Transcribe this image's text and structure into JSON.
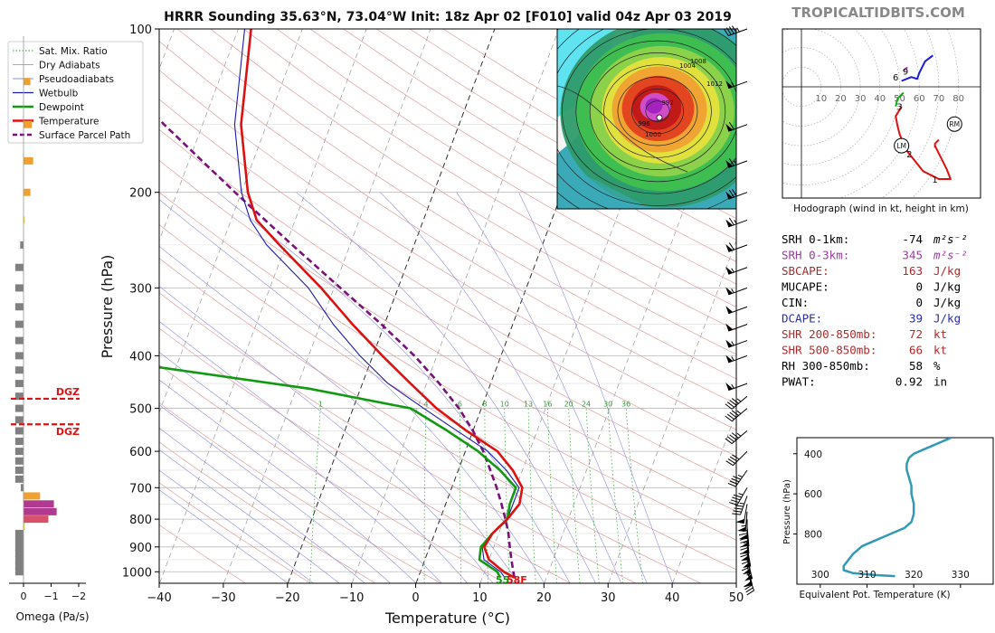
{
  "title": "HRRR Sounding 35.63°N, 73.04°W Init: 18z Apr 02 [F010] valid 04z Apr 03 2019",
  "brand": "TROPICALTIDBITS.COM",
  "colors": {
    "temperature": "#dd1111",
    "dewpoint": "#119911",
    "wetbulb": "#1a1aaa",
    "parcel": "#7a117a",
    "dgz": "#dd1111",
    "omega_grey": "#808080",
    "omega_orange": "#f0a030",
    "omega_yellow": "#f0e040",
    "omega_magenta": "#b03a90",
    "omega_pink": "#d8506a",
    "hodo_red": "#dd1111",
    "hodo_blue": "#1a1ae0",
    "hodo_green": "#11aa11",
    "hodo_magenta": "#c040c0",
    "theta_e": "#3399b5"
  },
  "legend": {
    "items": [
      {
        "label": "Sat. Mix. Ratio",
        "style": "dotted-green"
      },
      {
        "label": "Dry Adiabats",
        "style": "thin-grey"
      },
      {
        "label": "Pseudoadiabats",
        "style": "thin-blue"
      },
      {
        "label": "Wetbulb",
        "style": "blue"
      },
      {
        "label": "Dewpoint",
        "style": "green-thick"
      },
      {
        "label": "Temperature",
        "style": "red-thick"
      },
      {
        "label": "Surface Parcel Path",
        "style": "purple-dashed"
      }
    ]
  },
  "chart_data": [
    {
      "type": "line",
      "name": "skew-t",
      "xlabel": "Temperature (°C)",
      "ylabel": "Pressure (hPa)",
      "xlim": [
        -40,
        50
      ],
      "ylim": [
        1050,
        100
      ],
      "x_ticks": [
        "−40",
        "−30",
        "−20",
        "−10",
        "0",
        "10",
        "20",
        "30",
        "40",
        "50"
      ],
      "x_tick_values": [
        -40,
        -30,
        -20,
        -10,
        0,
        10,
        20,
        30,
        40,
        50
      ],
      "y_ticks": [
        "100",
        "200",
        "300",
        "400",
        "500",
        "600",
        "700",
        "800",
        "900",
        "1000"
      ],
      "y_tick_values": [
        100,
        200,
        300,
        400,
        500,
        600,
        700,
        800,
        900,
        1000
      ],
      "mixing_ratio_labels": [
        "1",
        "4",
        "6",
        "8",
        "10",
        "13",
        "16",
        "20",
        "24",
        "30",
        "36"
      ],
      "mixing_ratio_values": [
        1,
        4,
        6,
        8,
        10,
        13,
        16,
        20,
        24,
        30,
        36
      ],
      "series": [
        {
          "name": "Temperature",
          "p": [
            1025,
            1000,
            950,
            900,
            850,
            800,
            750,
            700,
            650,
            600,
            550,
            500,
            450,
            400,
            350,
            300,
            250,
            225,
            200,
            150,
            100
          ],
          "t": [
            15,
            13,
            10,
            8.5,
            9,
            10.5,
            11.5,
            11,
            8.5,
            5,
            -1,
            -7,
            -12.5,
            -18.5,
            -25,
            -32,
            -41,
            -46,
            -49,
            -54,
            -58
          ]
        },
        {
          "name": "Dewpoint",
          "p": [
            1025,
            1000,
            950,
            900,
            850,
            800,
            750,
            700,
            650,
            600,
            550,
            500,
            460,
            400,
            360,
            340,
            320,
            290,
            250,
            200,
            180,
            150,
            130,
            120,
            100
          ],
          "t": [
            12.8,
            12,
            8.5,
            8,
            9,
            10.5,
            10,
            10,
            6.5,
            2,
            -4,
            -11,
            -28,
            -66,
            -68,
            -69,
            -70,
            -70,
            -72,
            -74,
            -76,
            -78,
            -80,
            -79,
            -77
          ]
        },
        {
          "name": "Wetbulb",
          "p": [
            1025,
            1000,
            950,
            900,
            850,
            800,
            750,
            700,
            650,
            600,
            550,
            500,
            450,
            400,
            350,
            300,
            250,
            225,
            200,
            150,
            100
          ],
          "t": [
            13.5,
            12.5,
            9.2,
            8.2,
            9,
            10.5,
            10.5,
            10.5,
            7.5,
            3.5,
            -2.5,
            -9,
            -16,
            -22,
            -28,
            -34,
            -43,
            -47,
            -50,
            -55,
            -59
          ]
        },
        {
          "name": "Surface Parcel Path",
          "p": [
            1025,
            1000,
            950,
            900,
            850,
            800,
            750,
            700,
            650,
            600,
            550,
            500,
            450,
            400,
            350,
            300,
            250,
            200,
            150,
            100
          ],
          "t": [
            15,
            14.5,
            13.5,
            12.5,
            11.5,
            10.2,
            8.7,
            7,
            5,
            2.8,
            0,
            -3.5,
            -8,
            -13.5,
            -20.5,
            -29,
            -39,
            -51,
            -66,
            -85
          ]
        }
      ],
      "surface_labels": {
        "dewpoint_f": "55",
        "temperature_f": "58F"
      }
    },
    {
      "type": "bar",
      "name": "omega",
      "xlabel": "Omega (Pa/s)",
      "x_ticks": [
        "0",
        "−1",
        "−2"
      ],
      "x_tick_values": [
        0,
        -1,
        -2
      ],
      "dgz_label": "DGZ",
      "dgz_levels_hpa": [
        480,
        535
      ],
      "p": [
        1000,
        975,
        950,
        925,
        900,
        875,
        850,
        825,
        800,
        775,
        750,
        725,
        700,
        675,
        650,
        625,
        600,
        575,
        550,
        525,
        500,
        475,
        450,
        425,
        400,
        375,
        350,
        325,
        300,
        275,
        250,
        225,
        200,
        175,
        150,
        125
      ],
      "values": [
        0.3,
        0.3,
        0.3,
        0.3,
        0.3,
        0.3,
        0.3,
        -0.05,
        -0.9,
        -1.2,
        -1.1,
        -0.6,
        0.1,
        0.3,
        0.3,
        0.3,
        0.3,
        0.3,
        0.3,
        0.3,
        0.3,
        0.3,
        0.3,
        0.3,
        0.3,
        0.3,
        0.3,
        0.3,
        0.3,
        0.3,
        0.12,
        -0.05,
        -0.25,
        -0.35,
        -0.3,
        -0.25
      ],
      "colors": [
        "grey",
        "grey",
        "grey",
        "grey",
        "grey",
        "grey",
        "grey",
        "yellow",
        "pink",
        "magenta",
        "magenta",
        "orange",
        "grey",
        "grey",
        "grey",
        "grey",
        "grey",
        "grey",
        "grey",
        "grey",
        "grey",
        "grey",
        "grey",
        "grey",
        "grey",
        "grey",
        "grey",
        "grey",
        "grey",
        "grey",
        "grey",
        "yellow",
        "orange",
        "orange",
        "orange",
        "orange"
      ]
    },
    {
      "type": "line",
      "name": "hodograph",
      "caption": "Hodograph (wind in kt, height in km)",
      "ring_labels": [
        "10",
        "20",
        "30",
        "40",
        "50",
        "60",
        "70",
        "80"
      ],
      "ring_values": [
        10,
        20,
        30,
        40,
        50,
        60,
        70,
        80
      ],
      "segments": [
        {
          "color": "hodo_red",
          "points": [
            [
              68,
              -30
            ],
            [
              74,
              -42
            ],
            [
              76,
              -47
            ],
            [
              70,
              -47
            ],
            [
              62,
              -43
            ],
            [
              54,
              -33
            ],
            [
              52,
              -29
            ],
            [
              50,
              -24
            ],
            [
              49,
              -20
            ],
            [
              48,
              -15
            ],
            [
              51,
              -10
            ]
          ]
        },
        {
          "color": "hodo_red",
          "points": [
            [
              70,
              -27
            ],
            [
              68,
              -29
            ],
            [
              68,
              -31
            ]
          ]
        },
        {
          "color": "hodo_green",
          "points": [
            [
              48,
              -10
            ],
            [
              49,
              -6
            ],
            [
              52,
              -3
            ]
          ]
        },
        {
          "color": "hodo_blue",
          "points": [
            [
              51,
              3
            ],
            [
              56,
              5
            ],
            [
              59,
              4
            ],
            [
              60,
              7
            ],
            [
              63,
              13
            ],
            [
              67,
              16
            ]
          ]
        },
        {
          "color": "hodo_magenta",
          "points": [
            [
              52,
              8
            ],
            [
              54,
              10
            ]
          ]
        }
      ],
      "height_labels": [
        {
          "text": "1",
          "u": 68,
          "v": -47
        },
        {
          "text": "2",
          "u": 55,
          "v": -34
        },
        {
          "text": "3",
          "u": 50,
          "v": -10
        },
        {
          "text": "6",
          "u": 48,
          "v": 5
        },
        {
          "text": "9",
          "u": 53,
          "v": 8
        }
      ],
      "markers": [
        {
          "text": "RM",
          "u": 78,
          "v": -19
        },
        {
          "text": "LM",
          "u": 51,
          "v": -30
        }
      ]
    },
    {
      "type": "line",
      "name": "theta-e",
      "xlabel": "Equivalent Pot. Temperature (K)",
      "ylabel": "Pressure (hPa)",
      "x_ticks": [
        "300",
        "310",
        "320",
        "330"
      ],
      "x_tick_values": [
        300,
        310,
        320,
        330
      ],
      "y_ticks": [
        "400",
        "600",
        "800"
      ],
      "y_tick_values": [
        400,
        600,
        800
      ],
      "xlim": [
        295,
        337
      ],
      "ylim": [
        1050,
        320
      ],
      "p": [
        1010,
        1005,
        995,
        980,
        960,
        930,
        900,
        860,
        830,
        800,
        770,
        740,
        700,
        650,
        600,
        560,
        520,
        480,
        450,
        420,
        400,
        380,
        350,
        320
      ],
      "theta_e": [
        316,
        312,
        307,
        305,
        305,
        306,
        307,
        309,
        312,
        315,
        318,
        319.5,
        320,
        320,
        319.5,
        319.5,
        319,
        318.5,
        318.5,
        319,
        320,
        322,
        325,
        328
      ]
    }
  ],
  "indices": [
    {
      "label": "SRH 0-1km:",
      "value": "-74",
      "unit": "m²s⁻²",
      "color": "#000000"
    },
    {
      "label": "SRH 0-3km:",
      "value": "345",
      "unit": "m²s⁻²",
      "color": "#9a3aa0"
    },
    {
      "label": "SBCAPE:",
      "value": "163",
      "unit": "J/kg",
      "color": "#b02a2a"
    },
    {
      "label": "MUCAPE:",
      "value": "0",
      "unit": "J/kg",
      "color": "#000000"
    },
    {
      "label": "CIN:",
      "value": "0",
      "unit": "J/kg",
      "color": "#000000"
    },
    {
      "label": "DCAPE:",
      "value": "39",
      "unit": "J/kg",
      "color": "#2a2ab0"
    },
    {
      "label": "SHR 200-850mb:",
      "value": "72",
      "unit": "kt",
      "color": "#b02a2a"
    },
    {
      "label": "SHR 500-850mb:",
      "value": "66",
      "unit": "kt",
      "color": "#b02a2a"
    },
    {
      "label": "RH 300-850mb:",
      "value": "58",
      "unit": "%",
      "color": "#000000"
    },
    {
      "label": "PWAT:",
      "value": "0.92",
      "unit": "in",
      "color": "#000000"
    }
  ],
  "inset_map": {
    "pressure_labels": [
      "992",
      "1004",
      "1008",
      "1012",
      "1000",
      "996"
    ]
  },
  "wind_barbs": [
    {
      "p": 100,
      "dir": 250,
      "spd": 45
    },
    {
      "p": 125,
      "dir": 250,
      "spd": 55
    },
    {
      "p": 150,
      "dir": 250,
      "spd": 60
    },
    {
      "p": 175,
      "dir": 250,
      "spd": 65
    },
    {
      "p": 200,
      "dir": 250,
      "spd": 70
    },
    {
      "p": 225,
      "dir": 250,
      "spd": 65
    },
    {
      "p": 250,
      "dir": 250,
      "spd": 60
    },
    {
      "p": 275,
      "dir": 250,
      "spd": 55
    },
    {
      "p": 300,
      "dir": 250,
      "spd": 55
    },
    {
      "p": 325,
      "dir": 250,
      "spd": 50
    },
    {
      "p": 350,
      "dir": 250,
      "spd": 50
    },
    {
      "p": 375,
      "dir": 250,
      "spd": 55
    },
    {
      "p": 400,
      "dir": 250,
      "spd": 55
    },
    {
      "p": 450,
      "dir": 250,
      "spd": 55
    },
    {
      "p": 475,
      "dir": 230,
      "spd": 45
    },
    {
      "p": 500,
      "dir": 230,
      "spd": 45
    },
    {
      "p": 550,
      "dir": 230,
      "spd": 45
    },
    {
      "p": 600,
      "dir": 225,
      "spd": 40
    },
    {
      "p": 650,
      "dir": 215,
      "spd": 45
    },
    {
      "p": 700,
      "dir": 210,
      "spd": 45
    },
    {
      "p": 725,
      "dir": 200,
      "spd": 45
    },
    {
      "p": 750,
      "dir": 190,
      "spd": 50
    },
    {
      "p": 775,
      "dir": 185,
      "spd": 55
    },
    {
      "p": 800,
      "dir": 180,
      "spd": 65
    },
    {
      "p": 825,
      "dir": 175,
      "spd": 70
    },
    {
      "p": 850,
      "dir": 175,
      "spd": 75
    },
    {
      "p": 875,
      "dir": 175,
      "spd": 70
    },
    {
      "p": 900,
      "dir": 170,
      "spd": 65
    },
    {
      "p": 925,
      "dir": 170,
      "spd": 60
    },
    {
      "p": 950,
      "dir": 165,
      "spd": 55
    },
    {
      "p": 975,
      "dir": 165,
      "spd": 50
    },
    {
      "p": 1000,
      "dir": 160,
      "spd": 40
    }
  ]
}
